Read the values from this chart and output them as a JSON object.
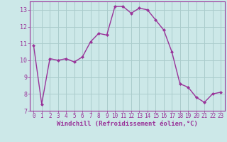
{
  "x": [
    0,
    1,
    2,
    3,
    4,
    5,
    6,
    7,
    8,
    9,
    10,
    11,
    12,
    13,
    14,
    15,
    16,
    17,
    18,
    19,
    20,
    21,
    22,
    23
  ],
  "y": [
    10.9,
    7.4,
    10.1,
    10.0,
    10.1,
    9.9,
    10.2,
    11.1,
    11.6,
    11.5,
    13.2,
    13.2,
    12.8,
    13.1,
    13.0,
    12.4,
    11.8,
    10.5,
    8.6,
    8.4,
    7.8,
    7.5,
    8.0,
    8.1
  ],
  "line_color": "#993399",
  "marker": "D",
  "marker_size": 2.0,
  "bg_color": "#cce8e8",
  "grid_color": "#aacccc",
  "xlabel": "Windchill (Refroidissement éolien,°C)",
  "ylim": [
    7,
    13.5
  ],
  "xlim": [
    -0.5,
    23.5
  ],
  "yticks": [
    7,
    8,
    9,
    10,
    11,
    12,
    13
  ],
  "xticks": [
    0,
    1,
    2,
    3,
    4,
    5,
    6,
    7,
    8,
    9,
    10,
    11,
    12,
    13,
    14,
    15,
    16,
    17,
    18,
    19,
    20,
    21,
    22,
    23
  ],
  "purple": "#993399",
  "tick_fontsize": 5.5,
  "xlabel_fontsize": 6.5,
  "linewidth": 1.0
}
